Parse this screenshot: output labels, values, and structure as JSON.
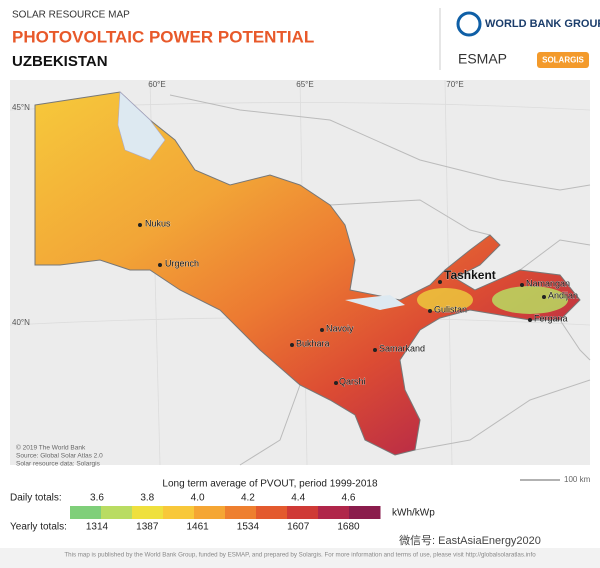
{
  "header": {
    "kicker": "SOLAR RESOURCE MAP",
    "title": "PHOTOVOLTAIC POWER POTENTIAL",
    "country": "UZBEKISTAN",
    "logos": [
      "WORLD BANK GROUP",
      "ESMAP",
      "SOLARGIS"
    ]
  },
  "map": {
    "longitudes": [
      "60°E",
      "65°E",
      "70°E"
    ],
    "latitudes": [
      "45°N",
      "40°N"
    ],
    "cities": [
      "Nukus",
      "Urgench",
      "Navoiy",
      "Bukhara",
      "Samarkand",
      "Qarshi",
      "Tashkent",
      "Gulistan",
      "Namangan",
      "Andijan",
      "Fergana"
    ],
    "credits": [
      "© 2019 The World Bank",
      "Source: Global Solar Atlas 2.0",
      "Solar resource data: Solargis"
    ],
    "scale": "100 km"
  },
  "legend": {
    "caption": "Long term average of PVOUT, period 1999-2018",
    "daily_label": "Daily totals:",
    "daily": [
      "3.6",
      "3.8",
      "4.0",
      "4.2",
      "4.4",
      "4.6"
    ],
    "unit": "kWh/kWp",
    "yearly_label": "Yearly totals:",
    "yearly": [
      "1314",
      "1387",
      "1461",
      "1534",
      "1607",
      "1680"
    ],
    "colors": [
      "#7fcf7a",
      "#b9dc62",
      "#efe03e",
      "#f8c83a",
      "#f5a634",
      "#ee7f2f",
      "#e35a2e",
      "#cf3a36",
      "#b0264a",
      "#8a1c4c"
    ]
  },
  "watermark": "微信号: EastAsiaEnergy2020",
  "footer": "This map is published by the World Bank Group, funded by ESMAP, and prepared by Solargis. For more information and terms of use, please visit http://globalsolaratlas.info"
}
